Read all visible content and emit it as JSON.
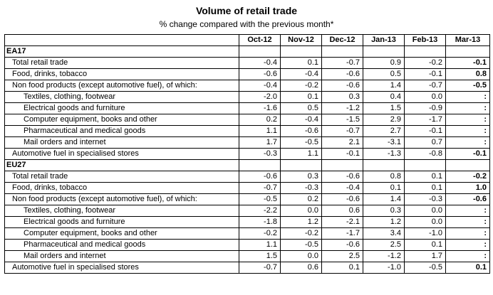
{
  "title": "Volume of retail trade",
  "subtitle": "% change compared with the previous month*",
  "columns": [
    "Oct-12",
    "Nov-12",
    "Dec-12",
    "Jan-13",
    "Feb-13",
    "Mar-13"
  ],
  "groups": [
    {
      "name": "EA17",
      "rows": [
        {
          "label": "Total retail trade",
          "level": 1,
          "values": [
            "-0.4",
            "0.1",
            "-0.7",
            "0.9",
            "-0.2",
            "-0.1"
          ]
        },
        {
          "label": "Food, drinks, tobacco",
          "level": 1,
          "values": [
            "-0.6",
            "-0.4",
            "-0.6",
            "0.5",
            "-0.1",
            "0.8"
          ]
        },
        {
          "label": "Non food products (except automotive fuel), of which:",
          "level": 1,
          "values": [
            "-0.4",
            "-0.2",
            "-0.6",
            "1.4",
            "-0.7",
            "-0.5"
          ]
        },
        {
          "label": "Textiles, clothing, footwear",
          "level": 2,
          "values": [
            "-2.0",
            "0.1",
            "0.3",
            "0.4",
            "0.0",
            ":"
          ]
        },
        {
          "label": "Electrical goods and furniture",
          "level": 2,
          "values": [
            "-1.6",
            "0.5",
            "-1.2",
            "1.5",
            "-0.9",
            ":"
          ]
        },
        {
          "label": "Computer equipment, books and other",
          "level": 2,
          "values": [
            "0.2",
            "-0.4",
            "-1.5",
            "2.9",
            "-1.7",
            ":"
          ]
        },
        {
          "label": "Pharmaceutical and medical goods",
          "level": 2,
          "values": [
            "1.1",
            "-0.6",
            "-0.7",
            "2.7",
            "-0.1",
            ":"
          ]
        },
        {
          "label": "Mail orders and internet",
          "level": 2,
          "values": [
            "1.7",
            "-0.5",
            "2.1",
            "-3.1",
            "0.7",
            ":"
          ]
        },
        {
          "label": "Automotive fuel in specialised stores",
          "level": 1,
          "values": [
            "-0.3",
            "1.1",
            "-0.1",
            "-1.3",
            "-0.8",
            "-0.1"
          ]
        }
      ]
    },
    {
      "name": "EU27",
      "rows": [
        {
          "label": "Total retail trade",
          "level": 1,
          "values": [
            "-0.6",
            "0.3",
            "-0.6",
            "0.8",
            "0.1",
            "-0.2"
          ]
        },
        {
          "label": "Food, drinks, tobacco",
          "level": 1,
          "values": [
            "-0.7",
            "-0.3",
            "-0.4",
            "0.1",
            "0.1",
            "1.0"
          ]
        },
        {
          "label": "Non food products (except automotive fuel), of which:",
          "level": 1,
          "values": [
            "-0.5",
            "0.2",
            "-0.6",
            "1.4",
            "-0.3",
            "-0.6"
          ]
        },
        {
          "label": "Textiles, clothing, footwear",
          "level": 2,
          "values": [
            "-2.2",
            "0.0",
            "0.6",
            "0.3",
            "0.0",
            ":"
          ]
        },
        {
          "label": "Electrical goods and furniture",
          "level": 2,
          "values": [
            "-1.8",
            "1.2",
            "-2.1",
            "1.2",
            "0.0",
            ":"
          ]
        },
        {
          "label": "Computer equipment, books and other",
          "level": 2,
          "values": [
            "-0.2",
            "-0.2",
            "-1.7",
            "3.4",
            "-1.0",
            ":"
          ]
        },
        {
          "label": "Pharmaceutical and medical goods",
          "level": 2,
          "values": [
            "1.1",
            "-0.5",
            "-0.6",
            "2.5",
            "0.1",
            ":"
          ]
        },
        {
          "label": "Mail orders and internet",
          "level": 2,
          "values": [
            "1.5",
            "0.0",
            "2.5",
            "-1.2",
            "1.7",
            ":"
          ]
        },
        {
          "label": "Automotive fuel in specialised stores",
          "level": 1,
          "values": [
            "-0.7",
            "0.6",
            "0.1",
            "-1.0",
            "-0.5",
            "0.1"
          ]
        }
      ]
    }
  ]
}
